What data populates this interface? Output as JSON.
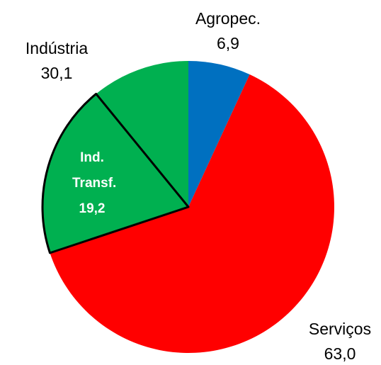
{
  "chart_data": {
    "type": "pie",
    "slices": [
      {
        "name": "Agropec.",
        "value": 6.9,
        "value_label": "6,9",
        "color": "#0070c0"
      },
      {
        "name": "Serviços",
        "value": 63.0,
        "value_label": "63,0",
        "color": "#ff0000"
      },
      {
        "name": "Indústria",
        "value": 30.1,
        "value_label": "30,1",
        "color": "#00b050",
        "parts": [
          {
            "name": "Ind. Transf.",
            "value": 19.2,
            "value_label": "19,2"
          }
        ]
      }
    ]
  }
}
